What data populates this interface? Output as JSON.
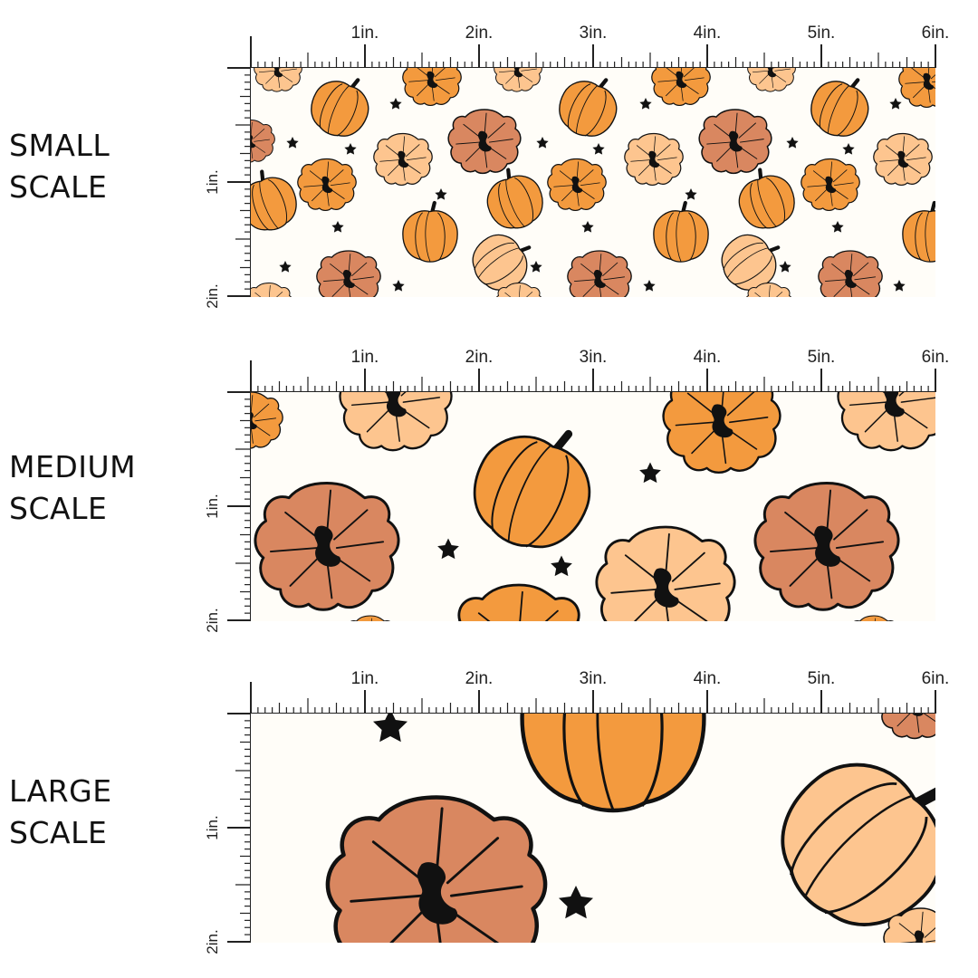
{
  "colors": {
    "background": "#fffdf8",
    "pumpkin_rust": "#d98760",
    "pumpkin_orange": "#f39a3e",
    "pumpkin_peach": "#fdc58f",
    "outline": "#111111"
  },
  "icons": [
    "pumpkin-icon",
    "star-icon"
  ],
  "ruler": {
    "horizontal_marks": [
      "1in.",
      "2in.",
      "3in.",
      "4in.",
      "5in.",
      "6in."
    ],
    "vertical_marks": [
      "1in.",
      "2in."
    ]
  },
  "scales": [
    {
      "id": "small",
      "label_line1": "SMALL",
      "label_line2": "SCALE"
    },
    {
      "id": "medium",
      "label_line1": "MEDIUM",
      "label_line2": "SCALE"
    },
    {
      "id": "large",
      "label_line1": "LARGE",
      "label_line2": "SCALE"
    }
  ]
}
